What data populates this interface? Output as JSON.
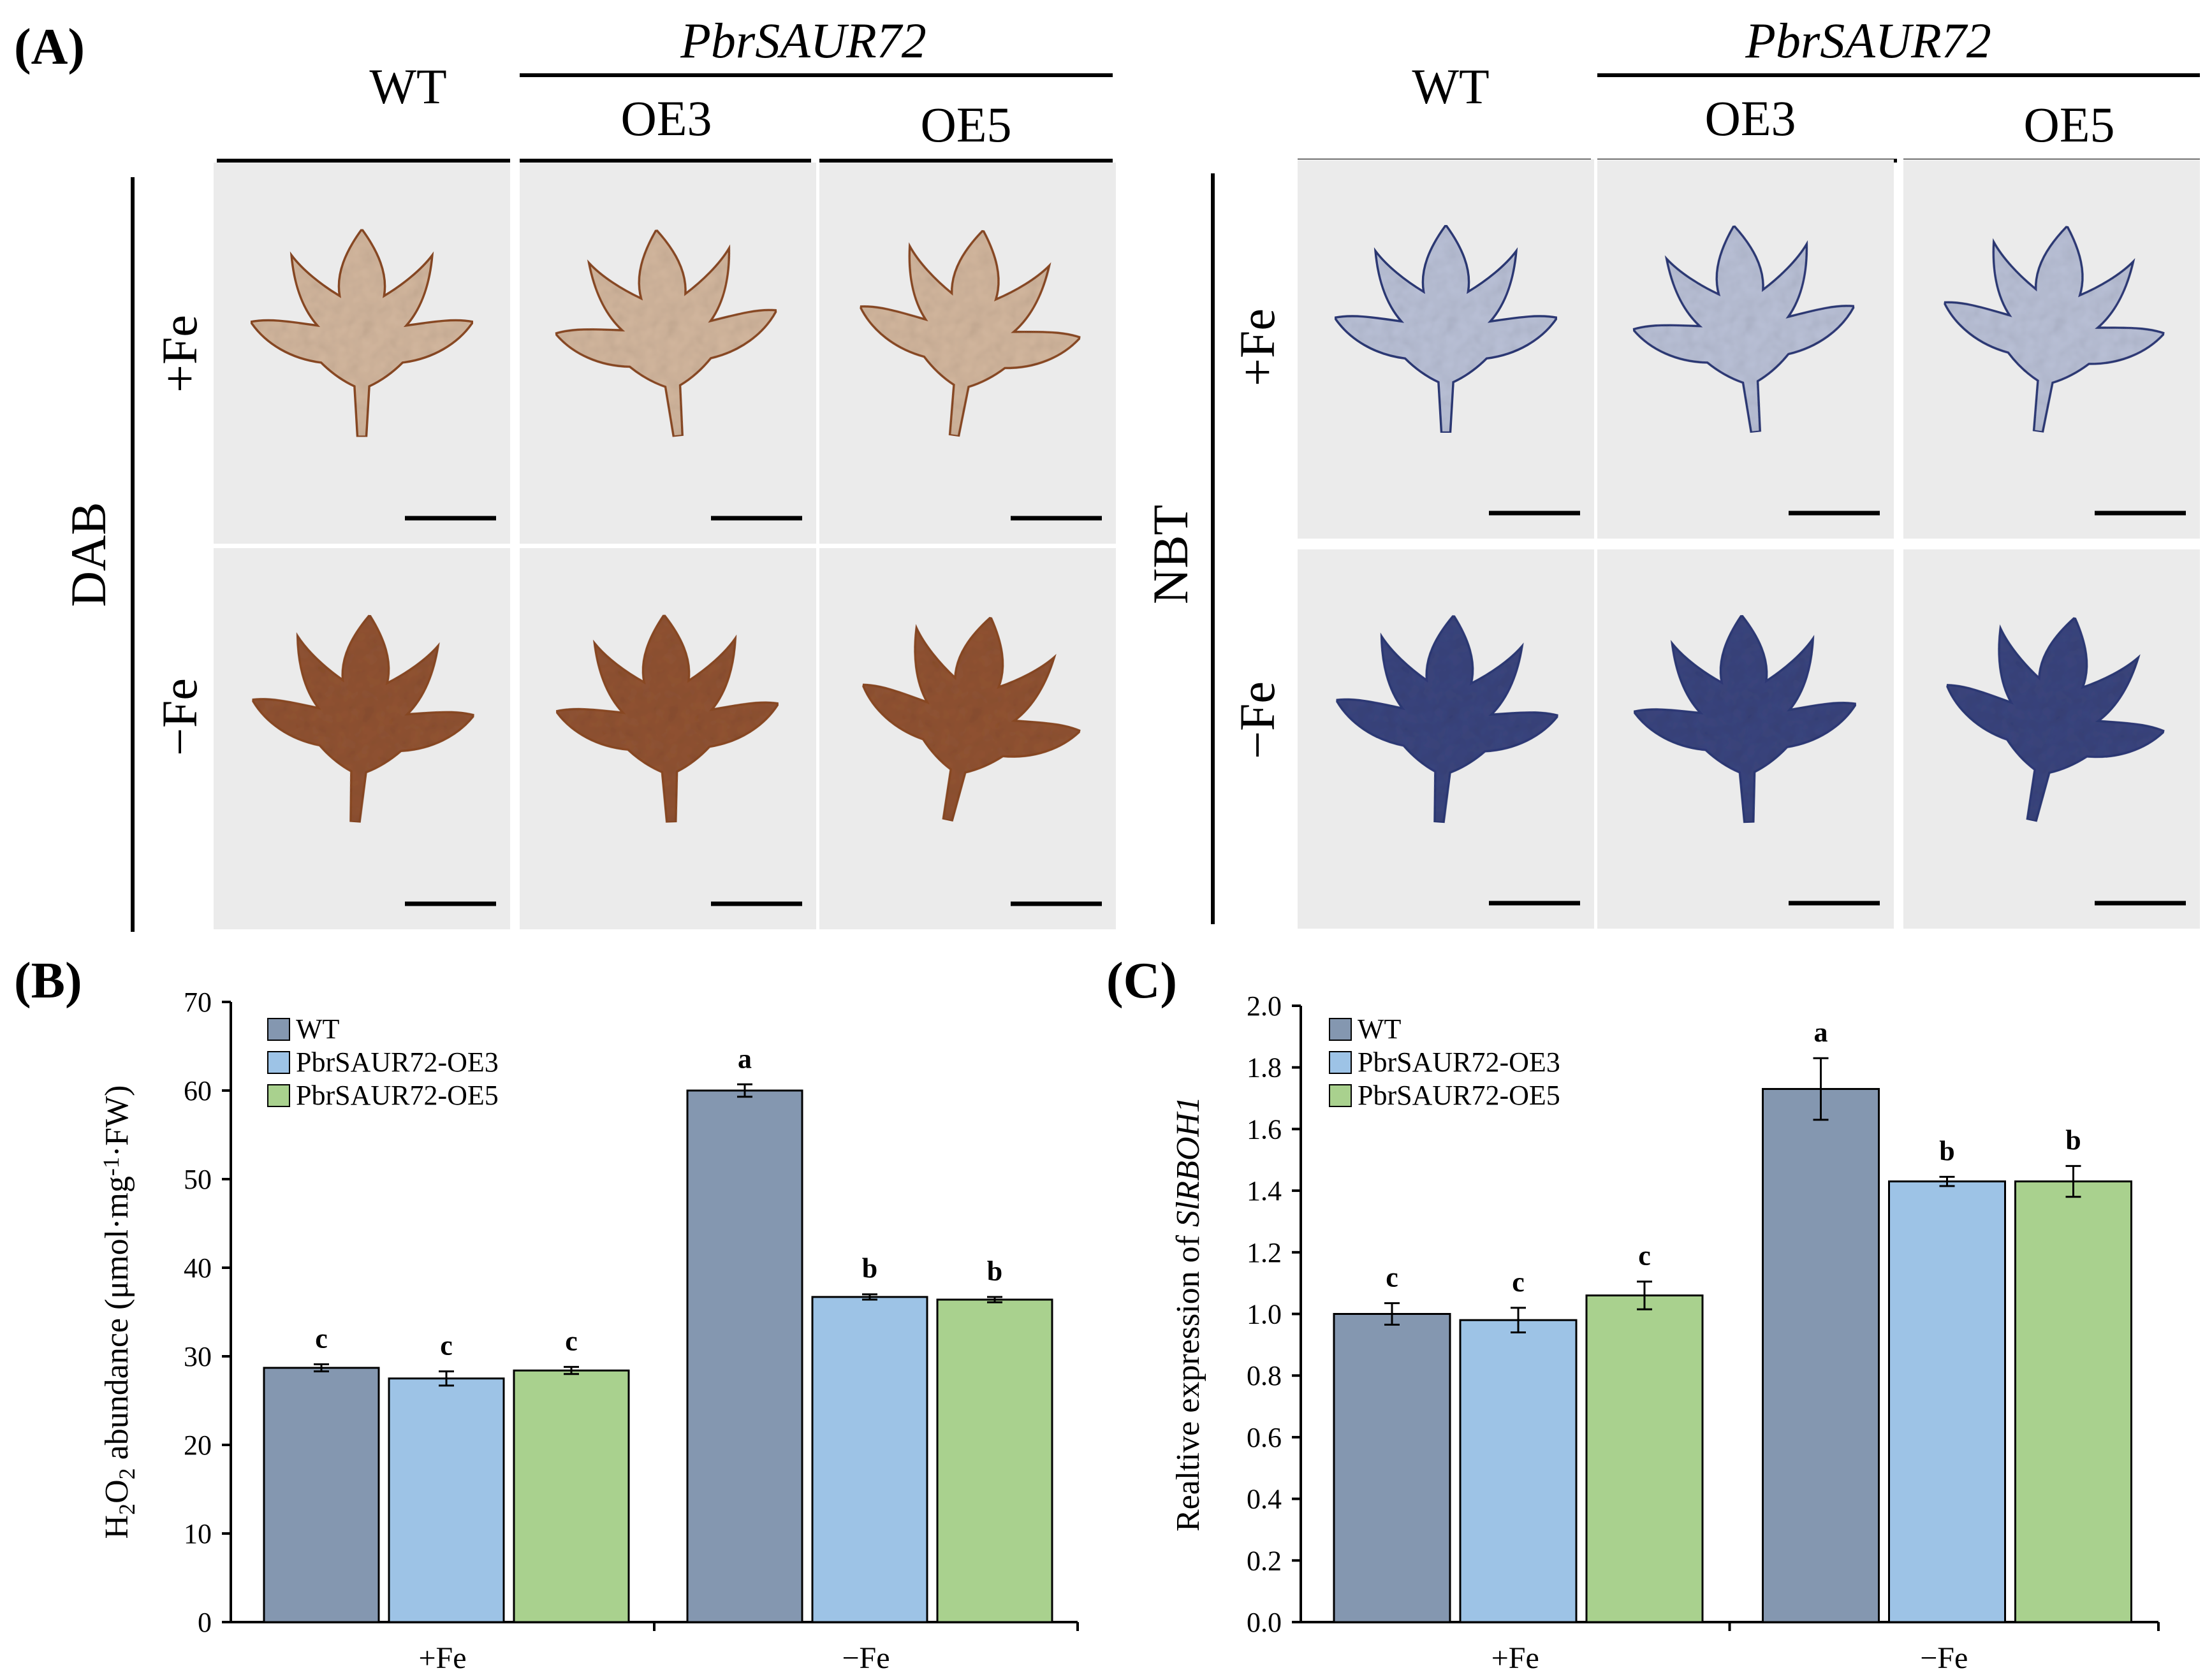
{
  "panel_a": {
    "letter": "(A)",
    "dab_block": {
      "stain": "DAB",
      "group_label": "PbrSAUR72",
      "genotypes": [
        "WT",
        "OE3",
        "OE5"
      ],
      "conditions": [
        "+Fe",
        "−Fe"
      ]
    },
    "nbt_block": {
      "stain": "NBT",
      "group_label": "PbrSAUR72",
      "genotypes": [
        "WT",
        "OE3",
        "OE5"
      ],
      "conditions": [
        "+Fe",
        "−Fe"
      ]
    },
    "colors": {
      "photo_bg": "#ebebeb",
      "dab_light": "#d2b49a",
      "dab_dark": "#8c4a25",
      "nbt_light": "#b7bfd6",
      "nbt_dark": "#2e3a78"
    }
  },
  "chart_data": [
    {
      "panel": "(B)",
      "type": "bar",
      "categories": [
        "+Fe",
        "−Fe"
      ],
      "series": [
        {
          "name": "WT",
          "values": [
            28.7,
            60.0
          ],
          "errors": [
            0.4,
            0.7
          ],
          "letters": [
            "c",
            "a"
          ],
          "color": "#8497b0"
        },
        {
          "name": "PbrSAUR72-OE3",
          "values": [
            27.5,
            36.7
          ],
          "errors": [
            0.8,
            0.3
          ],
          "letters": [
            "c",
            "b"
          ],
          "color": "#9dc3e6"
        },
        {
          "name": "PbrSAUR72-OE5",
          "values": [
            28.4,
            36.4
          ],
          "errors": [
            0.4,
            0.3
          ],
          "letters": [
            "c",
            "b"
          ],
          "color": "#a9d18e"
        }
      ],
      "ylabel_parts": [
        "H",
        "2",
        "O",
        "2",
        " abundance  (μmol·mg",
        "-1",
        "·FW)"
      ],
      "ylim": [
        0,
        70
      ],
      "yticks": [
        "0",
        "10",
        "20",
        "30",
        "40",
        "50",
        "60",
        "70"
      ],
      "legend": "top-left"
    },
    {
      "panel": "(C)",
      "type": "bar",
      "categories": [
        "+Fe",
        "−Fe"
      ],
      "series": [
        {
          "name": "WT",
          "values": [
            1.0,
            1.73
          ],
          "errors": [
            0.035,
            0.1
          ],
          "letters": [
            "c",
            "a"
          ],
          "color": "#8497b0"
        },
        {
          "name": "PbrSAUR72-OE3",
          "values": [
            0.98,
            1.43
          ],
          "errors": [
            0.04,
            0.015
          ],
          "letters": [
            "c",
            "b"
          ],
          "color": "#9dc3e6"
        },
        {
          "name": "PbrSAUR72-OE5",
          "values": [
            1.06,
            1.43
          ],
          "errors": [
            0.045,
            0.05
          ],
          "letters": [
            "c",
            "b"
          ],
          "color": "#a9d18e"
        }
      ],
      "ylabel_plain": "Realtive  expression  of ",
      "ylabel_italic": "SlRBOH1",
      "ylim": [
        0,
        2.0
      ],
      "yticks": [
        "0.0",
        "0.2",
        "0.4",
        "0.6",
        "0.8",
        "1.0",
        "1.2",
        "1.4",
        "1.6",
        "1.8",
        "2.0"
      ],
      "legend": "top-left"
    }
  ]
}
